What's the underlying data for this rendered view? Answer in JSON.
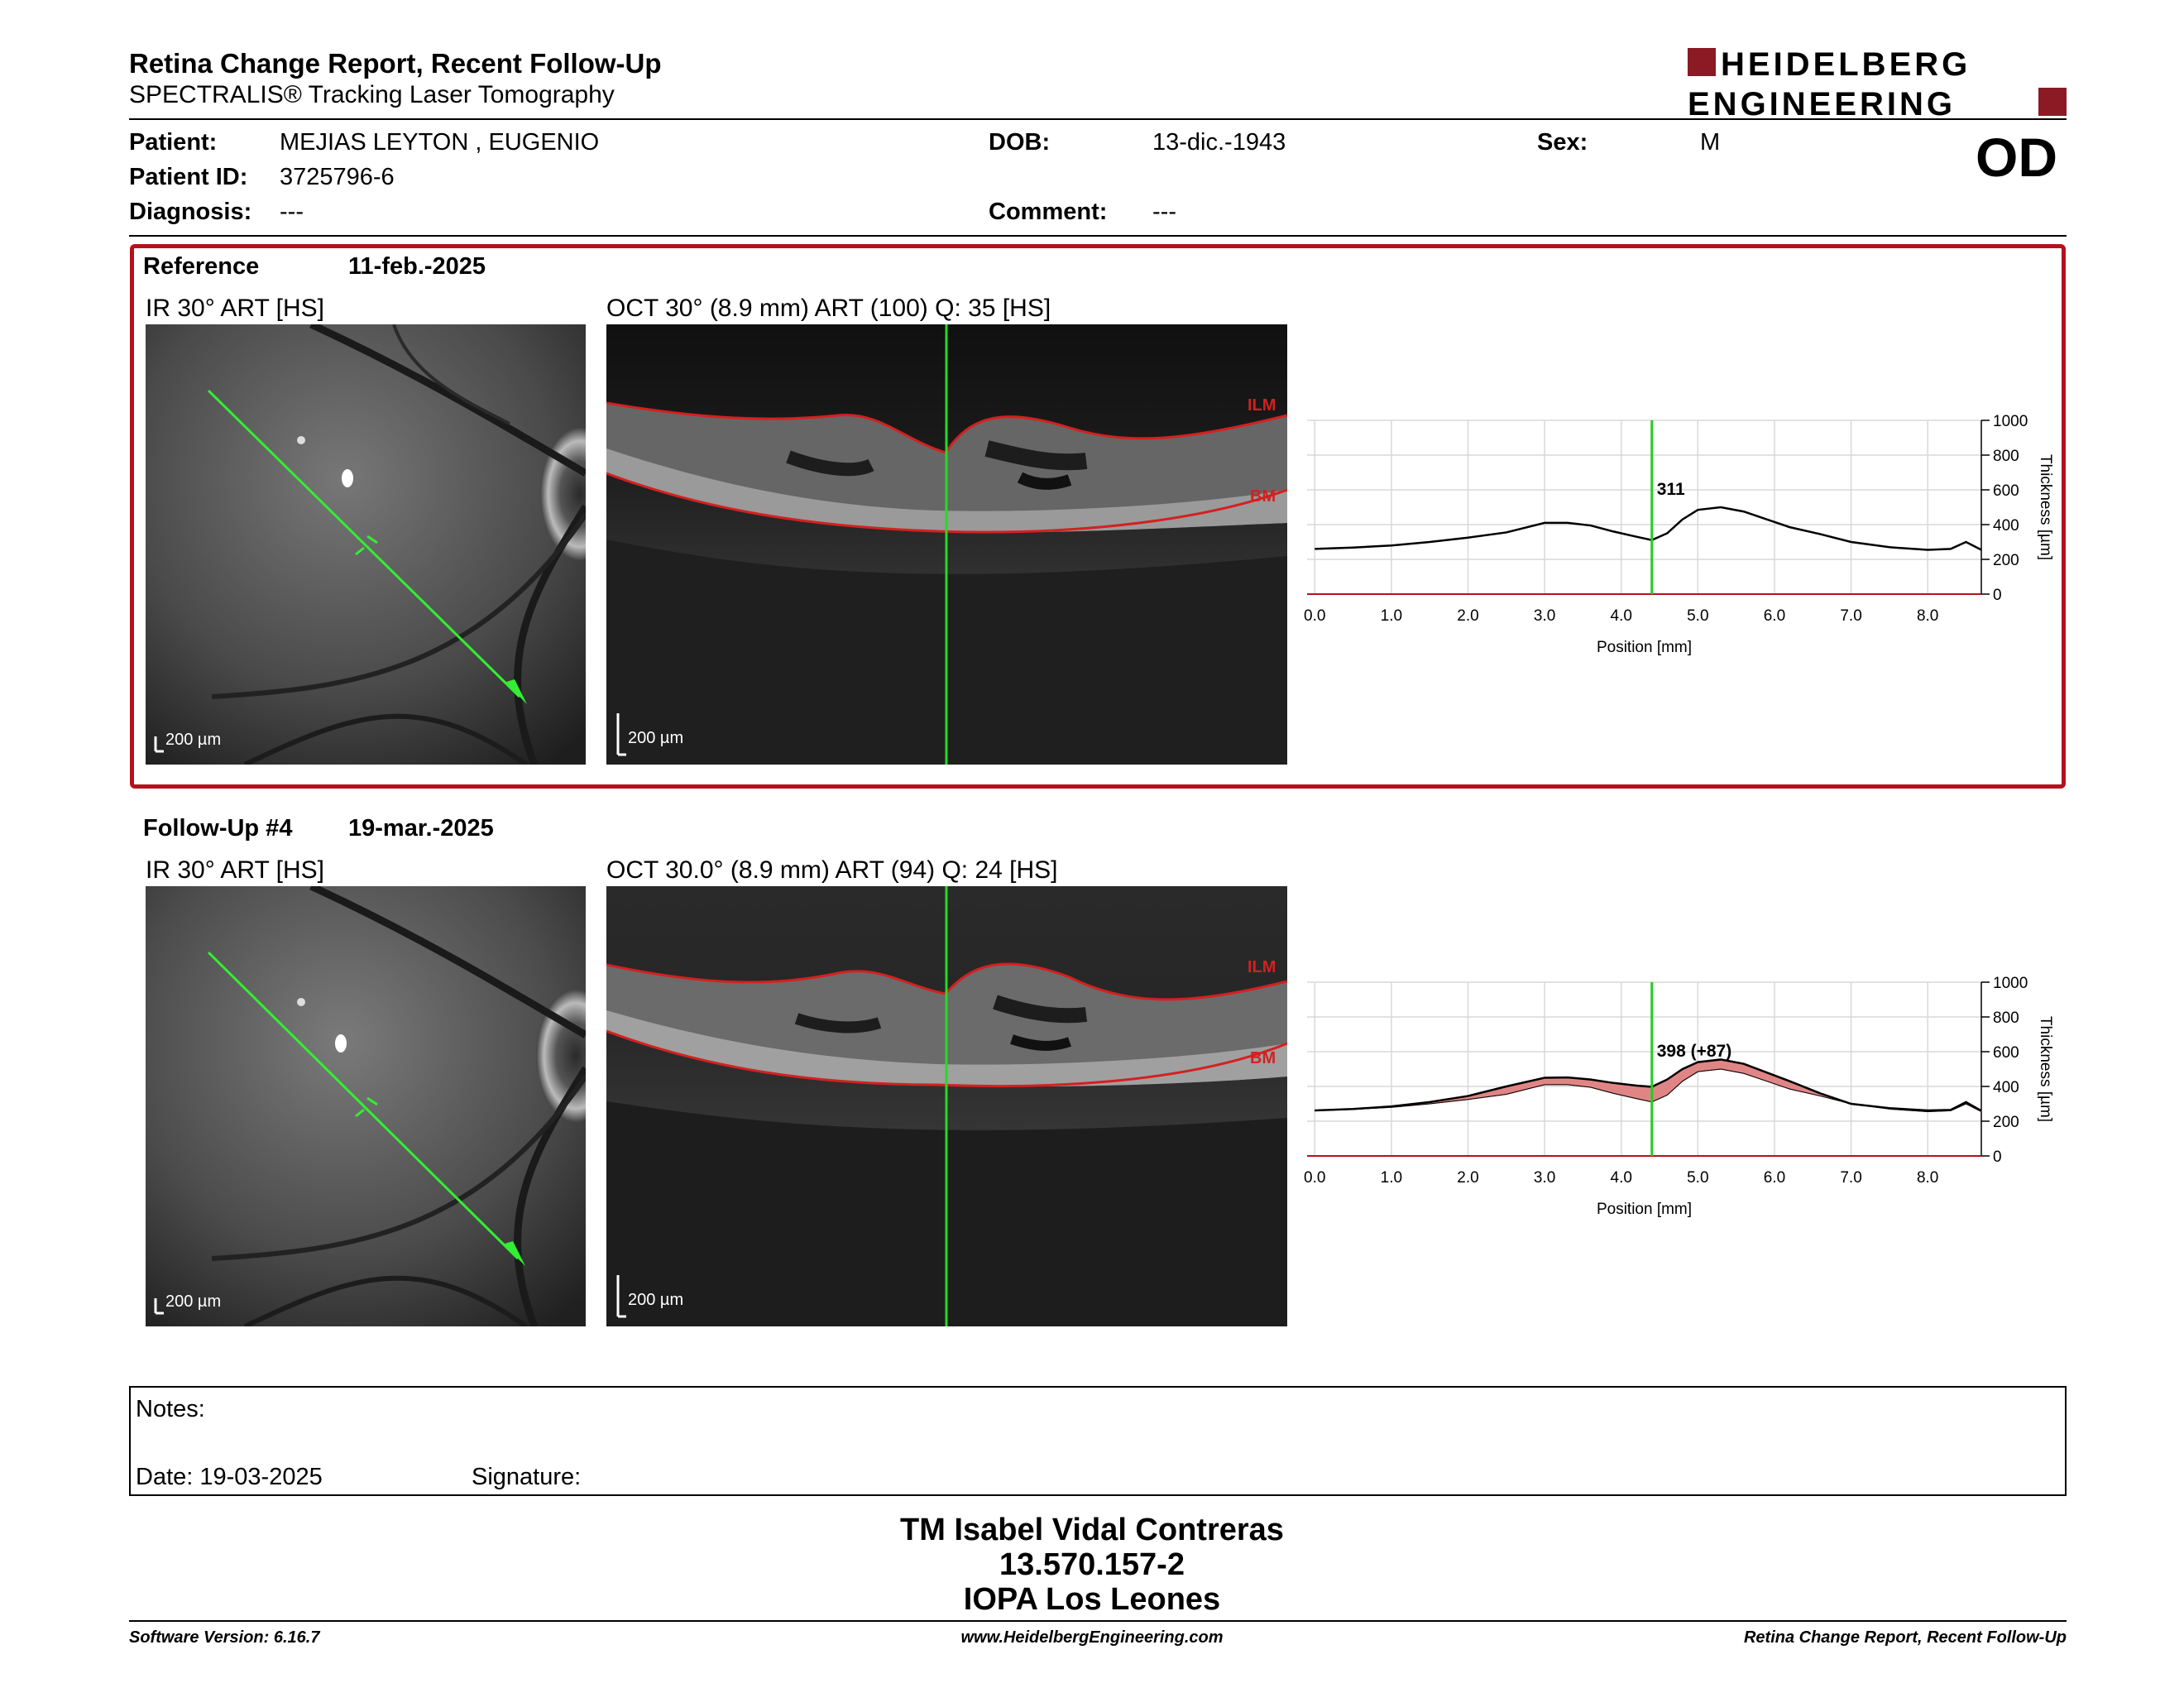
{
  "header": {
    "title": "Retina Change Report, Recent Follow-Up",
    "subtitle": "SPECTRALIS® Tracking Laser Tomography",
    "logo_line1": "HEIDELBERG",
    "logo_line2": "ENGINEERING"
  },
  "patient": {
    "patient_label": "Patient:",
    "patient_value": "MEJIAS LEYTON , EUGENIO",
    "id_label": "Patient ID:",
    "id_value": "3725796-6",
    "diagnosis_label": "Diagnosis:",
    "diagnosis_value": "---",
    "dob_label": "DOB:",
    "dob_value": "13-dic.-1943",
    "comment_label": "Comment:",
    "comment_value": "---",
    "sex_label": "Sex:",
    "sex_value": "M",
    "eye": "OD"
  },
  "reference": {
    "label": "Reference",
    "date": "11-feb.-2025",
    "ir_caption": "IR 30° ART [HS]",
    "oct_caption": "OCT 30° (8.9 mm) ART (100) Q: 35 [HS]",
    "ir_scale": "200 µm",
    "oct_scale": "200 µm",
    "ilm": "ILM",
    "bm": "BM"
  },
  "followup": {
    "label": "Follow-Up #4",
    "date": "19-mar.-2025",
    "ir_caption": "IR 30° ART [HS]",
    "oct_caption": "OCT 30.0° (8.9 mm) ART (94) Q: 24 [HS]",
    "ir_scale": "200 µm",
    "oct_scale": "200 µm",
    "ilm": "ILM",
    "bm": "BM"
  },
  "chart_data": [
    {
      "type": "line",
      "xlabel": "Position [mm]",
      "ylabel": "Thickness [µm]",
      "xlim": [
        -0.1,
        8.7
      ],
      "ylim": [
        0,
        1000
      ],
      "xticks": [
        "0.0",
        "1.0",
        "2.0",
        "3.0",
        "4.0",
        "5.0",
        "6.0",
        "7.0",
        "8.0"
      ],
      "yticks": [
        "0",
        "200",
        "400",
        "600",
        "800",
        "1000"
      ],
      "cursor_x": 4.4,
      "cursor_label": "311",
      "series": [
        {
          "x": [
            0.0,
            0.5,
            1.0,
            1.5,
            2.0,
            2.5,
            3.0,
            3.3,
            3.6,
            3.9,
            4.2,
            4.4,
            4.6,
            4.8,
            5.0,
            5.3,
            5.6,
            5.9,
            6.2,
            6.6,
            7.0,
            7.5,
            8.0,
            8.3,
            8.5,
            8.7
          ],
          "values": [
            260,
            268,
            280,
            300,
            325,
            355,
            410,
            410,
            395,
            360,
            330,
            311,
            350,
            430,
            485,
            500,
            475,
            430,
            385,
            345,
            300,
            270,
            255,
            260,
            300,
            255
          ]
        }
      ]
    },
    {
      "type": "area",
      "xlabel": "Position [mm]",
      "ylabel": "Thickness [µm]",
      "xlim": [
        -0.1,
        8.7
      ],
      "ylim": [
        0,
        1000
      ],
      "xticks": [
        "0.0",
        "1.0",
        "2.0",
        "3.0",
        "4.0",
        "5.0",
        "6.0",
        "7.0",
        "8.0"
      ],
      "yticks": [
        "0",
        "200",
        "400",
        "600",
        "800",
        "1000"
      ],
      "cursor_x": 4.4,
      "cursor_label": "398 (+87)",
      "fill_color": "#e08585",
      "series": [
        {
          "name": "follow-up",
          "x": [
            0.0,
            0.5,
            1.0,
            1.5,
            2.0,
            2.5,
            3.0,
            3.3,
            3.6,
            3.9,
            4.2,
            4.4,
            4.6,
            4.8,
            5.0,
            5.3,
            5.6,
            5.9,
            6.2,
            6.6,
            7.0,
            7.5,
            8.0,
            8.3,
            8.5,
            8.7
          ],
          "values": [
            262,
            270,
            285,
            310,
            345,
            400,
            450,
            452,
            440,
            420,
            405,
            398,
            440,
            500,
            540,
            555,
            530,
            480,
            430,
            360,
            300,
            275,
            262,
            265,
            310,
            260
          ]
        },
        {
          "name": "reference",
          "x": [
            0.0,
            0.5,
            1.0,
            1.5,
            2.0,
            2.5,
            3.0,
            3.3,
            3.6,
            3.9,
            4.2,
            4.4,
            4.6,
            4.8,
            5.0,
            5.3,
            5.6,
            5.9,
            6.2,
            6.6,
            7.0,
            7.5,
            8.0,
            8.3,
            8.5,
            8.7
          ],
          "values": [
            260,
            268,
            280,
            300,
            325,
            355,
            410,
            410,
            395,
            360,
            330,
            311,
            350,
            430,
            485,
            500,
            475,
            430,
            385,
            345,
            300,
            270,
            255,
            260,
            300,
            255
          ]
        }
      ]
    }
  ],
  "notes": {
    "notes_label": "Notes:",
    "date_label": "Date: 19-03-2025",
    "signature_label": "Signature:"
  },
  "signature_block": {
    "name": "TM Isabel Vidal Contreras",
    "id": "13.570.157-2",
    "institution": "IOPA Los Leones"
  },
  "footer": {
    "left": "Software Version: 6.16.7",
    "center": "www.HeidelbergEngineering.com",
    "right": "Retina Change Report, Recent Follow-Up"
  },
  "colors": {
    "accent": "#b3121c",
    "cursor": "#22cc22",
    "layer": "#d42020"
  }
}
